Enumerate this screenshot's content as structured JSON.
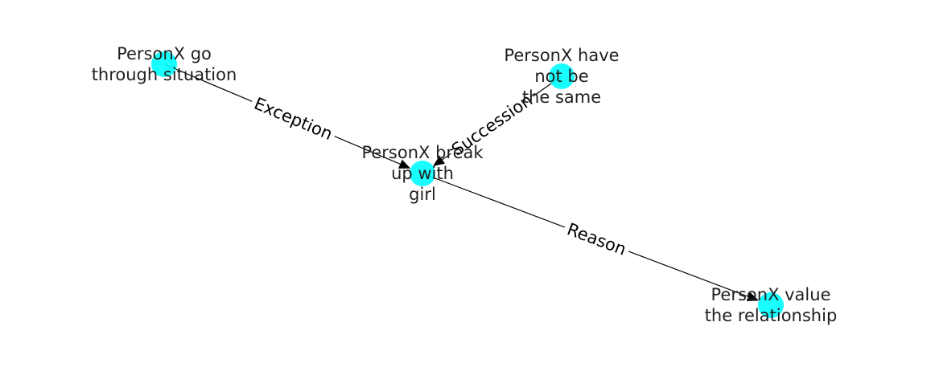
{
  "graph": {
    "node_color": "#00ffff",
    "edge_color": "#000000",
    "nodes": [
      {
        "id": "go_through",
        "label_lines": [
          "PersonX go",
          "through situation"
        ]
      },
      {
        "id": "have_not_be",
        "label_lines": [
          "PersonX have",
          "not be",
          "the same"
        ]
      },
      {
        "id": "break_up",
        "label_lines": [
          "PersonX break",
          "up with",
          "girl"
        ]
      },
      {
        "id": "value_rel",
        "label_lines": [
          "PersonX value",
          "the relationship"
        ]
      }
    ],
    "edges": [
      {
        "source": "go_through",
        "target": "break_up",
        "label": "Exception"
      },
      {
        "source": "have_not_be",
        "target": "break_up",
        "label": "Succession"
      },
      {
        "source": "break_up",
        "target": "value_rel",
        "label": "Reason"
      }
    ]
  }
}
